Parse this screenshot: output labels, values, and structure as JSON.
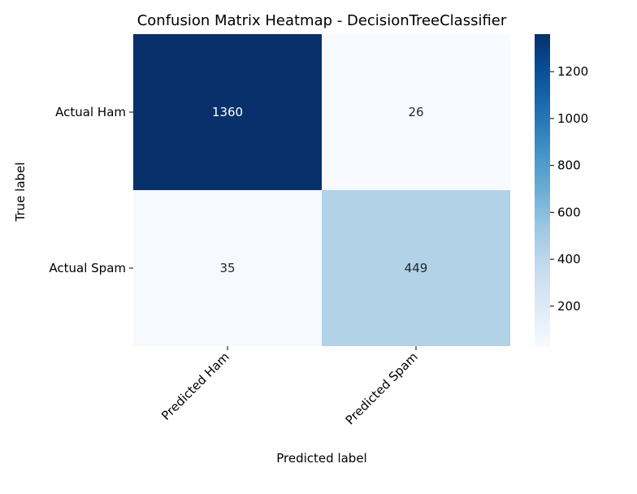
{
  "chart_data": {
    "type": "heatmap",
    "title": "Confusion Matrix Heatmap - DecisionTreeClassifier",
    "xlabel": "Predicted label",
    "ylabel": "True label",
    "x_categories": [
      "Predicted Ham",
      "Predicted Spam"
    ],
    "y_categories": [
      "Actual Ham",
      "Actual Spam"
    ],
    "values": [
      [
        1360,
        26
      ],
      [
        35,
        449
      ]
    ],
    "colormap": "Blues",
    "colorbar": {
      "ticks": [
        200,
        400,
        600,
        800,
        1000,
        1200
      ],
      "range": [
        26,
        1360
      ]
    },
    "colors": {
      "low": "#f7fbff",
      "high": "#08306b",
      "text_dark_bg": "#ffffff",
      "text_light_bg": "#262626"
    }
  }
}
